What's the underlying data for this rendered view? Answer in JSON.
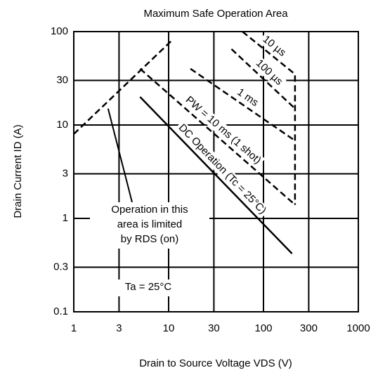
{
  "chart_data": {
    "type": "line",
    "title": "Maximum Safe Operation Area",
    "x_label": "Drain to Source Voltage VDS (V)",
    "y_label": "Drain Current ID (A)",
    "log_x": true,
    "log_y": true,
    "grid": true,
    "xlim": [
      1,
      1000
    ],
    "xticks": [
      1,
      3,
      10,
      30,
      100,
      300,
      1000
    ],
    "ylim": [
      0.1,
      100
    ],
    "yticks": [
      0.1,
      0.3,
      1,
      3,
      10,
      30,
      100
    ],
    "series": [
      {
        "name": "10 µs",
        "color": "#000000",
        "dashed": true,
        "x": [
          60,
          215,
          215
        ],
        "values": [
          100,
          35,
          1.4
        ]
      },
      {
        "name": "100 µs",
        "color": "#000000",
        "dashed": true,
        "x": [
          46,
          215
        ],
        "values": [
          65,
          15
        ]
      },
      {
        "name": "1 ms",
        "color": "#000000",
        "dashed": true,
        "x": [
          17,
          215
        ],
        "values": [
          40,
          6.8
        ]
      },
      {
        "name": "PW = 10 ms (1 shot)",
        "color": "#000000",
        "dashed": true,
        "x": [
          5,
          215
        ],
        "values": [
          40,
          1.4
        ]
      },
      {
        "name": "DC Operation (Tc = 25°C)",
        "color": "#000000",
        "dashed": false,
        "x": [
          5,
          200
        ],
        "values": [
          20,
          0.42
        ]
      },
      {
        "color": "#000000",
        "dashed": true,
        "x": [
          1,
          10.9
        ],
        "values": [
          8,
          81
        ]
      }
    ],
    "annotations": [
      {
        "lines": [
          "Operation in this",
          "area is limited",
          "by RDS (on)"
        ]
      },
      {
        "lines": [
          "Ta = 25°C"
        ]
      }
    ]
  }
}
